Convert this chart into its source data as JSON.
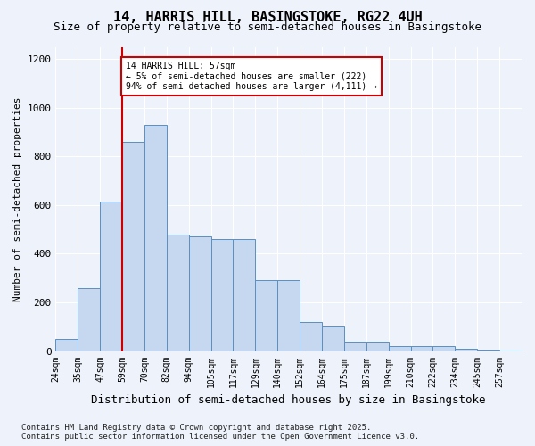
{
  "title1": "14, HARRIS HILL, BASINGSTOKE, RG22 4UH",
  "title2": "Size of property relative to semi-detached houses in Basingstoke",
  "xlabel": "Distribution of semi-detached houses by size in Basingstoke",
  "ylabel": "Number of semi-detached properties",
  "footnote1": "Contains HM Land Registry data © Crown copyright and database right 2025.",
  "footnote2": "Contains public sector information licensed under the Open Government Licence v3.0.",
  "annotation_title": "14 HARRIS HILL: 57sqm",
  "annotation_line1": "← 5% of semi-detached houses are smaller (222)",
  "annotation_line2": "94% of semi-detached houses are larger (4,111) →",
  "property_size_bin": 2,
  "bar_color": "#c5d8f0",
  "bar_edge_color": "#5a8fc0",
  "vline_color": "#cc0000",
  "annotation_box_color": "#cc0000",
  "background_color": "#eef2fa",
  "ylim": [
    0,
    1250
  ],
  "yticks": [
    0,
    200,
    400,
    600,
    800,
    1000,
    1200
  ],
  "bin_labels": [
    "24sqm",
    "35sqm",
    "47sqm",
    "59sqm",
    "70sqm",
    "82sqm",
    "94sqm",
    "105sqm",
    "117sqm",
    "129sqm",
    "140sqm",
    "152sqm",
    "164sqm",
    "175sqm",
    "187sqm",
    "199sqm",
    "210sqm",
    "222sqm",
    "234sqm",
    "245sqm",
    "257sqm"
  ],
  "bar_heights": [
    50,
    260,
    615,
    860,
    930,
    480,
    470,
    460,
    460,
    290,
    290,
    120,
    100,
    40,
    40,
    20,
    20,
    20,
    10,
    5,
    2
  ],
  "title1_fontsize": 11,
  "title2_fontsize": 9,
  "ylabel_fontsize": 8,
  "xlabel_fontsize": 9,
  "tick_fontsize": 7,
  "ytick_fontsize": 8,
  "footnote_fontsize": 6.5
}
